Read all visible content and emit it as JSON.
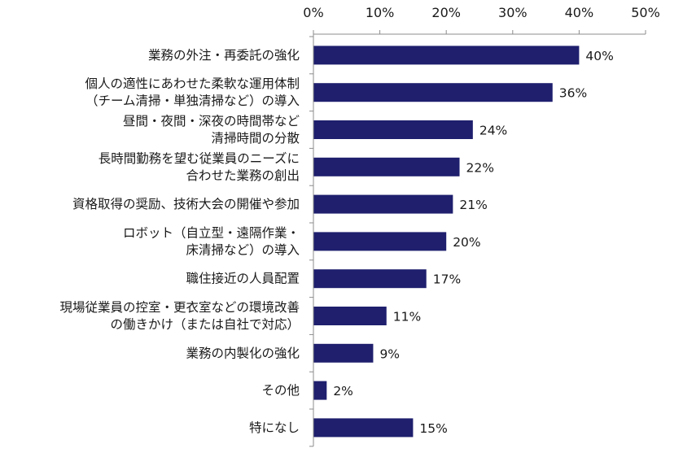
{
  "chart_data": {
    "type": "bar",
    "orientation": "horizontal",
    "categories": [
      [
        "業務の外注・再委託の強化"
      ],
      [
        "個人の適性にあわせた柔軟な運用体制",
        "（チーム清掃・単独清掃など）の導入"
      ],
      [
        "昼間・夜間・深夜の時間帯など",
        "清掃時間の分散"
      ],
      [
        "長時間勤務を望む従業員のニーズに",
        "合わせた業務の創出"
      ],
      [
        "資格取得の奨励、技術大会の開催や参加"
      ],
      [
        "ロボット（自立型・遠隔作業・",
        "床清掃など）の導入"
      ],
      [
        "職住接近の人員配置"
      ],
      [
        "現場従業員の控室・更衣室などの環境改善",
        "の働きかけ（または自社で対応）"
      ],
      [
        "業務の内製化の強化"
      ],
      [
        "その他"
      ],
      [
        "特になし"
      ]
    ],
    "values": [
      40,
      36,
      24,
      22,
      21,
      20,
      17,
      11,
      9,
      2,
      15
    ],
    "data_labels": [
      "40%",
      "36%",
      "24%",
      "22%",
      "21%",
      "20%",
      "17%",
      "11%",
      "9%",
      "2%",
      "15%"
    ],
    "xlim": [
      0,
      50
    ],
    "ticks": [
      0,
      10,
      20,
      30,
      40,
      50
    ],
    "tick_labels": [
      "0%",
      "10%",
      "20%",
      "30%",
      "40%",
      "50%"
    ],
    "axis_position": "top",
    "grid": false,
    "bar_color": "#1f1f6e",
    "axis_color": "#8c8c8c"
  }
}
